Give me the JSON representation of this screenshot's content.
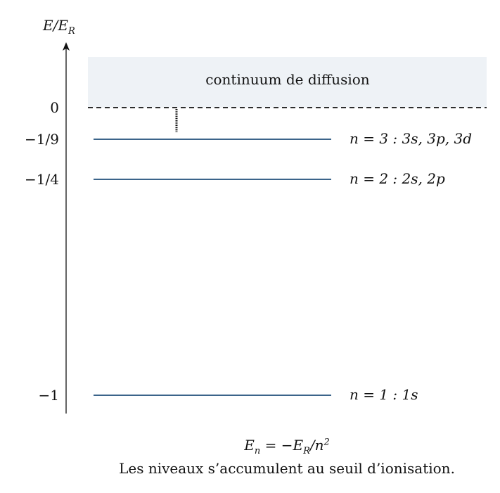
{
  "axis": {
    "label_base": "E/E",
    "label_sub": "R"
  },
  "continuum": {
    "label": "continuum de diffusion",
    "fill_color": "#eef2f6"
  },
  "levels": [
    {
      "n": 3,
      "energy": -0.1111,
      "tick_label": "−1/9",
      "label": "n = 3 : 3s, 3p, 3d"
    },
    {
      "n": 2,
      "energy": -0.25,
      "tick_label": "−1/4",
      "label": "n = 2 : 2s, 2p"
    },
    {
      "n": 1,
      "energy": -1.0,
      "tick_label": "−1",
      "label": "n = 1 : 1s"
    }
  ],
  "threshold": {
    "energy": 0,
    "tick_label": "0"
  },
  "colors": {
    "level_line": "#1f4e79",
    "axis": "#111111",
    "threshold_line": "#111111"
  },
  "formula": {
    "lhs": "E",
    "lhs_sub": "n",
    "eq": " = −E",
    "rhs_sub": "R",
    "rest": "/n",
    "power": "2"
  },
  "note": "Les niveaux s’accumulent au seuil d’ionisation."
}
